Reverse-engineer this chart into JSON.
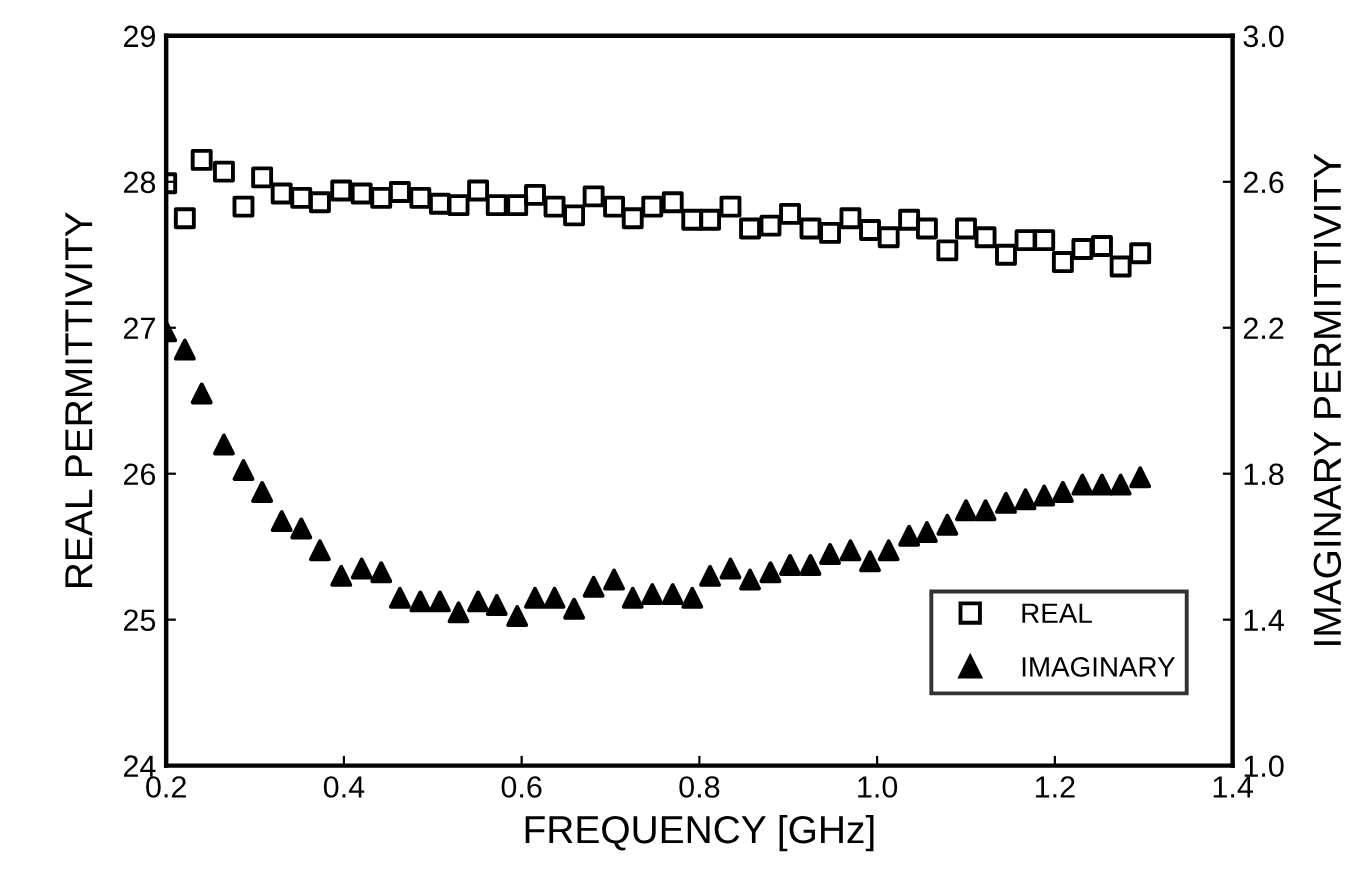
{
  "chart_data": {
    "type": "scatter",
    "xlabel": "FREQUENCY [GHz]",
    "ylabel": "REAL PERMITTIVITY",
    "y2label": "IMAGINARY PERMITTIVITY",
    "x": [
      0.2,
      0.221,
      0.24,
      0.265,
      0.287,
      0.308,
      0.33,
      0.352,
      0.373,
      0.397,
      0.42,
      0.442,
      0.463,
      0.486,
      0.508,
      0.529,
      0.551,
      0.572,
      0.595,
      0.615,
      0.637,
      0.659,
      0.681,
      0.704,
      0.725,
      0.747,
      0.77,
      0.792,
      0.812,
      0.835,
      0.857,
      0.88,
      0.902,
      0.925,
      0.947,
      0.97,
      0.992,
      1.013,
      1.036,
      1.056,
      1.079,
      1.1,
      1.122,
      1.145,
      1.167,
      1.188,
      1.209,
      1.231,
      1.253,
      1.274,
      1.296
    ],
    "series": [
      {
        "name": "REAL",
        "color": "#000000",
        "marker": "square",
        "values": [
          27.99,
          27.75,
          28.15,
          28.07,
          27.83,
          28.03,
          27.92,
          27.89,
          27.86,
          27.94,
          27.92,
          27.89,
          27.93,
          27.89,
          27.85,
          27.84,
          27.94,
          27.84,
          27.84,
          27.91,
          27.83,
          27.77,
          27.9,
          27.83,
          27.75,
          27.83,
          27.86,
          27.74,
          27.74,
          27.83,
          27.68,
          27.7,
          27.78,
          27.68,
          27.65,
          27.75,
          27.67,
          27.62,
          27.74,
          27.68,
          27.53,
          27.68,
          27.62,
          27.5,
          27.6,
          27.6,
          27.45,
          27.54,
          27.56,
          27.42,
          27.51
        ]
      },
      {
        "name": "IMAGINARY",
        "color": "#000000",
        "marker": "triangle",
        "axis": "y2",
        "values": [
          2.19,
          2.14,
          2.02,
          1.88,
          1.81,
          1.75,
          1.67,
          1.65,
          1.59,
          1.52,
          1.54,
          1.53,
          1.46,
          1.45,
          1.45,
          1.42,
          1.45,
          1.44,
          1.41,
          1.46,
          1.46,
          1.43,
          1.49,
          1.51,
          1.46,
          1.47,
          1.47,
          1.46,
          1.52,
          1.54,
          1.51,
          1.53,
          1.55,
          1.55,
          1.58,
          1.59,
          1.56,
          1.59,
          1.63,
          1.64,
          1.66,
          1.7,
          1.7,
          1.72,
          1.73,
          1.74,
          1.75,
          1.77,
          1.77,
          1.77,
          1.79
        ]
      }
    ],
    "xlim": [
      0.2,
      1.4
    ],
    "xticks": [
      0.2,
      0.4,
      0.6,
      0.8,
      {
        "value": 1.0,
        "label": "1.0"
      },
      1.2,
      1.4
    ],
    "ylim": [
      24,
      29
    ],
    "yticks": [
      24,
      25,
      26,
      27,
      28,
      29
    ],
    "y2lim": [
      1.0,
      3.0
    ],
    "y2ticks": [
      {
        "value": 1.0,
        "label": "1.0"
      },
      1.4,
      1.8,
      2.2,
      2.6,
      {
        "value": 3.0,
        "label": "3.0"
      }
    ],
    "grid": false,
    "legend": "bottom right"
  }
}
